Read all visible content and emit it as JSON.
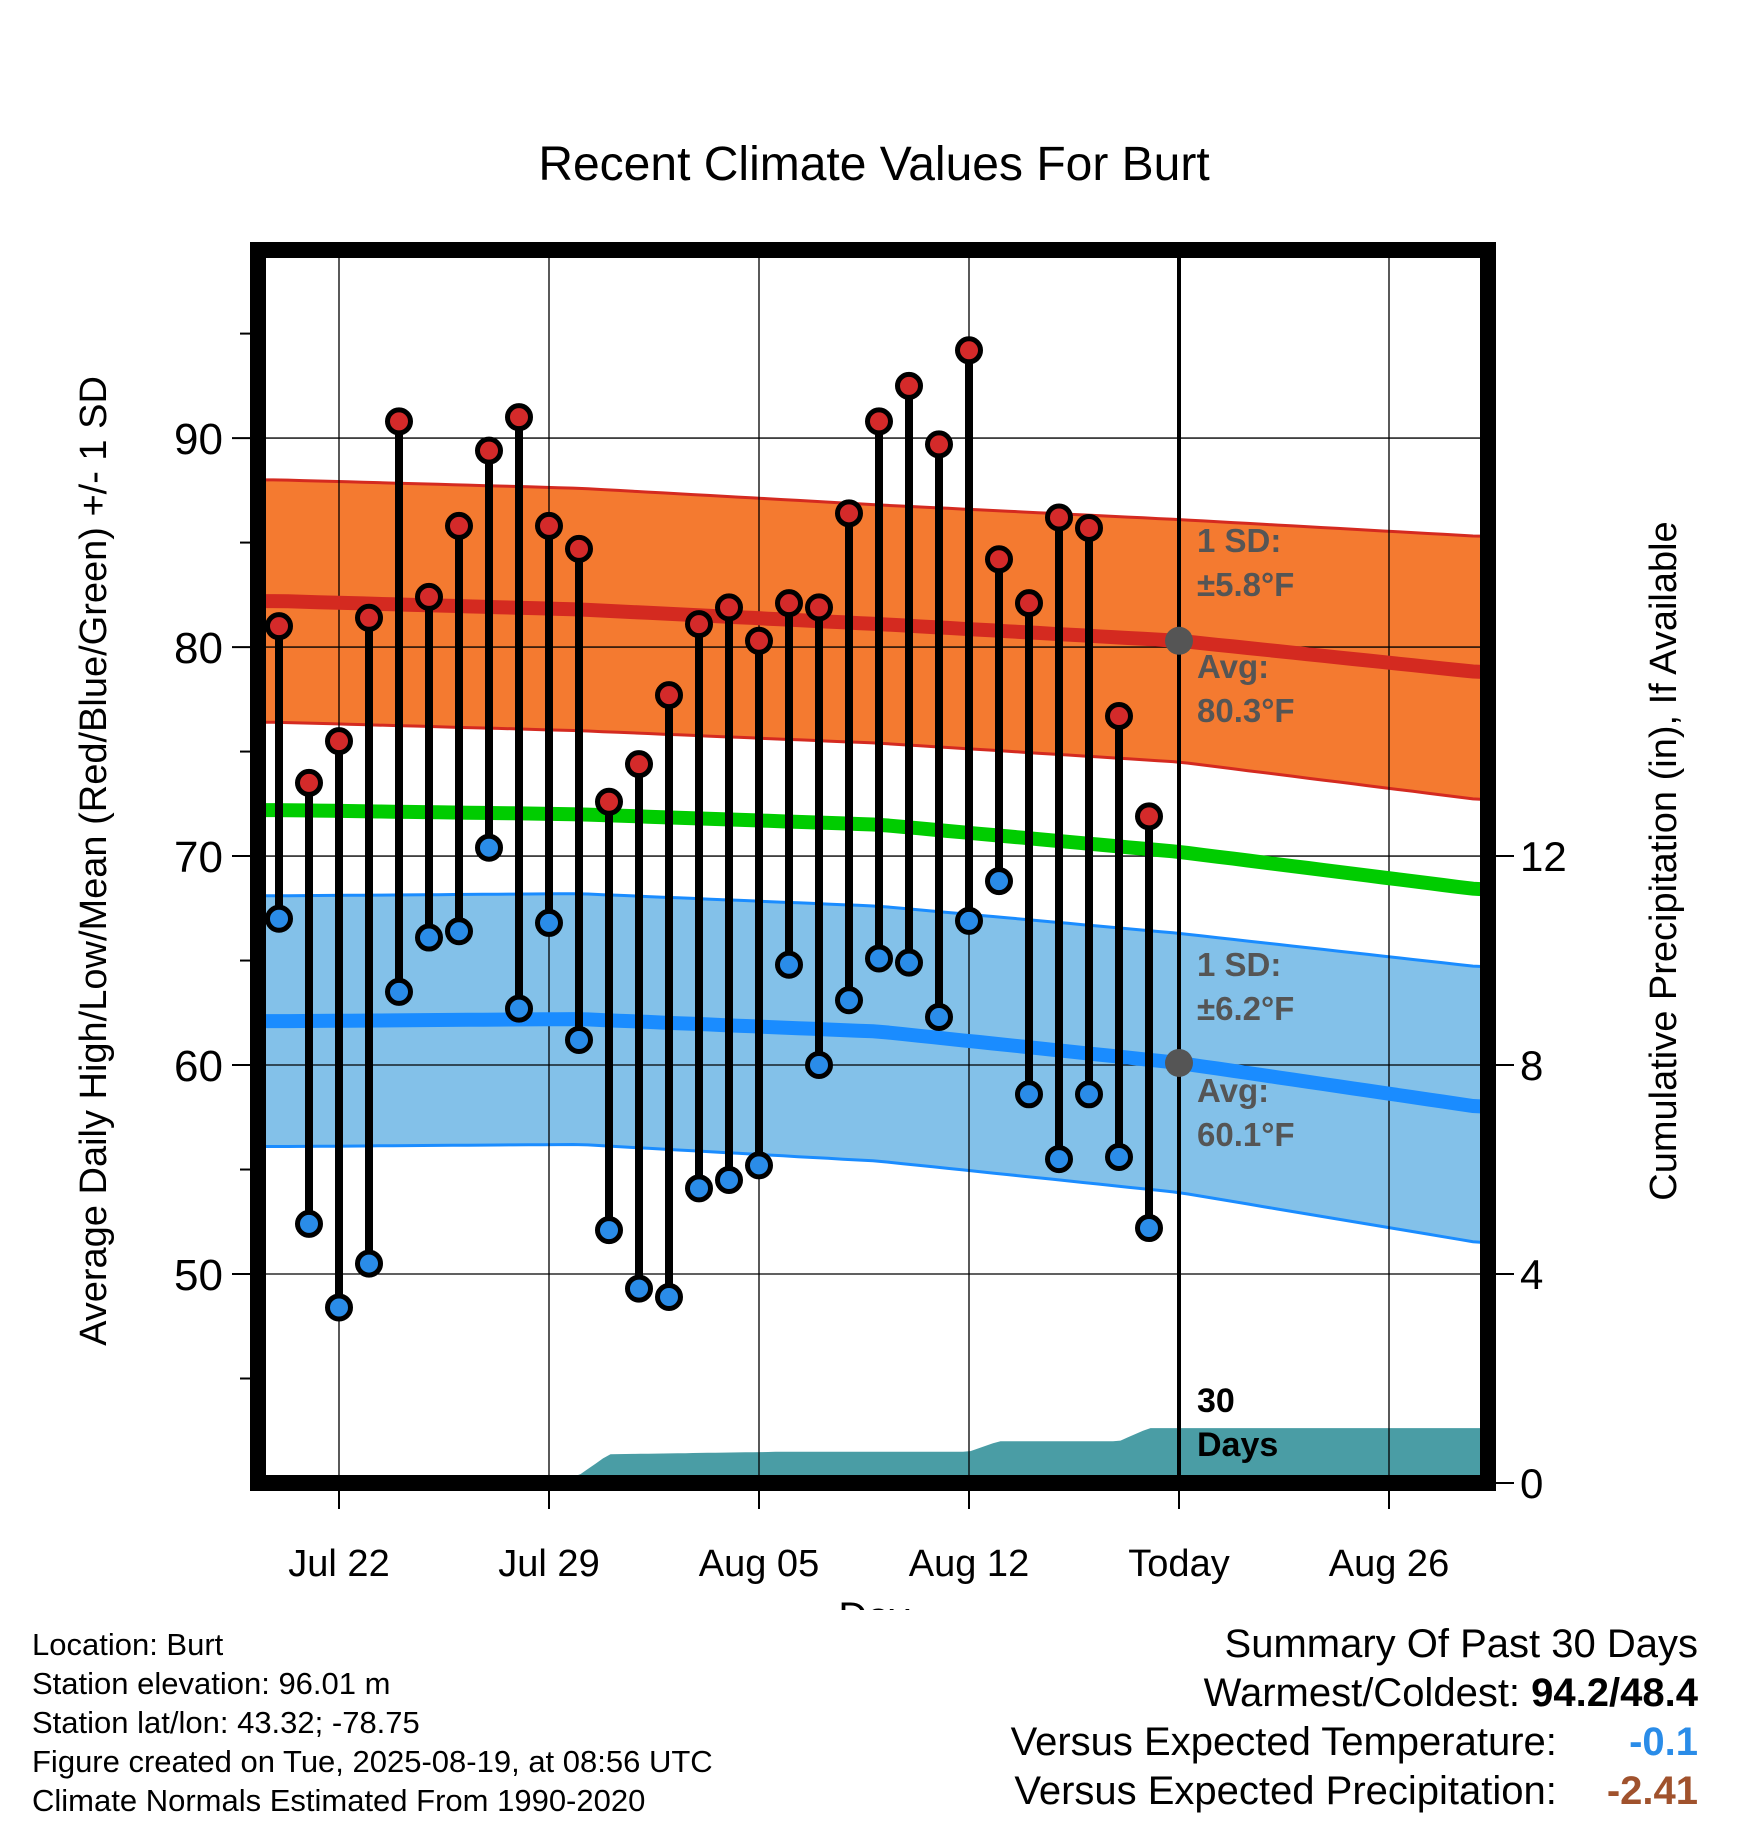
{
  "chart_data": {
    "type": "line",
    "title": "Recent Climate Values For Burt",
    "xlabel": "Day",
    "ylabel_left": "Average Daily High/Low/Mean (Red/Blue/Green) +/- 1 SD",
    "ylabel_right": "Cumulative Precipitation (in), If Available",
    "x_tick_labels": [
      {
        "label": "Jul 22",
        "day": 2
      },
      {
        "label": "Jul 29",
        "day": 9
      },
      {
        "label": "Aug 05",
        "day": 16
      },
      {
        "label": "Aug 12",
        "day": 23
      },
      {
        "label": "Today",
        "day": 30
      },
      {
        "label": "Aug 26",
        "day": 37
      }
    ],
    "x_range_days": [
      -0.7,
      40.3
    ],
    "today_day": 30,
    "ylim": [
      40,
      99
    ],
    "y_ticks": [
      50,
      60,
      70,
      80,
      90
    ],
    "y2_ticks": [
      0,
      4,
      8,
      12
    ],
    "y2_range": [
      0,
      23.6
    ],
    "daily_highs": [
      81.0,
      73.5,
      75.5,
      81.4,
      90.8,
      82.4,
      85.8,
      89.4,
      91.0,
      85.8,
      84.7,
      72.6,
      74.4,
      77.7,
      81.1,
      81.9,
      80.3,
      82.1,
      81.9,
      86.4,
      90.8,
      92.5,
      89.7,
      94.2,
      84.2,
      82.1,
      86.2,
      85.7,
      76.7,
      71.9
    ],
    "daily_lows": [
      67.0,
      52.4,
      48.4,
      50.5,
      63.5,
      66.1,
      66.4,
      70.4,
      62.7,
      66.8,
      61.2,
      52.1,
      49.3,
      48.9,
      54.1,
      54.5,
      55.2,
      64.8,
      60.0,
      63.1,
      65.1,
      64.9,
      62.3,
      66.9,
      68.8,
      58.6,
      55.5,
      58.6,
      55.6,
      52.2
    ],
    "normal_high": {
      "day": [
        0,
        10,
        20,
        30,
        40
      ],
      "avg": [
        82.2,
        81.8,
        81.1,
        80.3,
        78.8
      ],
      "upper": [
        88.0,
        87.6,
        86.8,
        86.1,
        85.3
      ],
      "lower": [
        76.4,
        76.0,
        75.4,
        74.5,
        72.7
      ]
    },
    "normal_low": {
      "day": [
        0,
        10,
        20,
        30,
        40
      ],
      "avg": [
        62.1,
        62.2,
        61.6,
        60.1,
        58.0
      ],
      "upper": [
        68.1,
        68.2,
        67.6,
        66.3,
        64.7
      ],
      "lower": [
        56.1,
        56.2,
        55.4,
        53.9,
        51.5
      ]
    },
    "normal_mean": {
      "day": [
        0,
        10,
        20,
        30,
        40
      ],
      "avg": [
        72.2,
        72.0,
        71.5,
        70.2,
        68.4
      ]
    },
    "precipitation": {
      "day": [
        0,
        9,
        10,
        11,
        17,
        23,
        24,
        28,
        29,
        40
      ],
      "cum_in": [
        0,
        0,
        0.15,
        0.55,
        0.6,
        0.6,
        0.8,
        0.8,
        1.05,
        1.05
      ]
    },
    "annotations": {
      "high_sd_label": "1 SD:",
      "high_sd_value": "±5.8°F",
      "high_avg_label": "Avg:",
      "high_avg_value": "80.3°F",
      "low_sd_label": "1 SD:",
      "low_sd_value": "±6.2°F",
      "low_avg_label": "Avg:",
      "low_avg_value": "60.1°F",
      "period_label_1": "30",
      "period_label_2": "Days"
    },
    "colors": {
      "high_band": "#f47a30",
      "high_line": "#d42a20",
      "low_band": "#83c1e9",
      "low_line": "#1a8cff",
      "mean_line": "#00cc00",
      "precip": "#4a9da5",
      "high_dot": "#d42a2a",
      "low_dot": "#2a8ce8",
      "annotation_text": "#555555"
    },
    "grid": true
  },
  "info": {
    "location": "Location: Burt",
    "elevation": "Station elevation: 96.01 m",
    "latlon": "Station lat/lon: 43.32; -78.75",
    "created": "Figure created on Tue, 2025-08-19, at 08:56 UTC",
    "normals": "Climate Normals Estimated From 1990-2020"
  },
  "summary": {
    "title": "Summary Of Past 30 Days",
    "warm_cold_label": "Warmest/Coldest:",
    "warm_cold_value": "94.2/48.4",
    "temp_label": "Versus Expected Temperature:",
    "temp_value": "-0.1",
    "temp_color": "#2a8ce8",
    "precip_label": "Versus Expected Precipitation:",
    "precip_value": "-2.41",
    "precip_color": "#a0522d"
  }
}
